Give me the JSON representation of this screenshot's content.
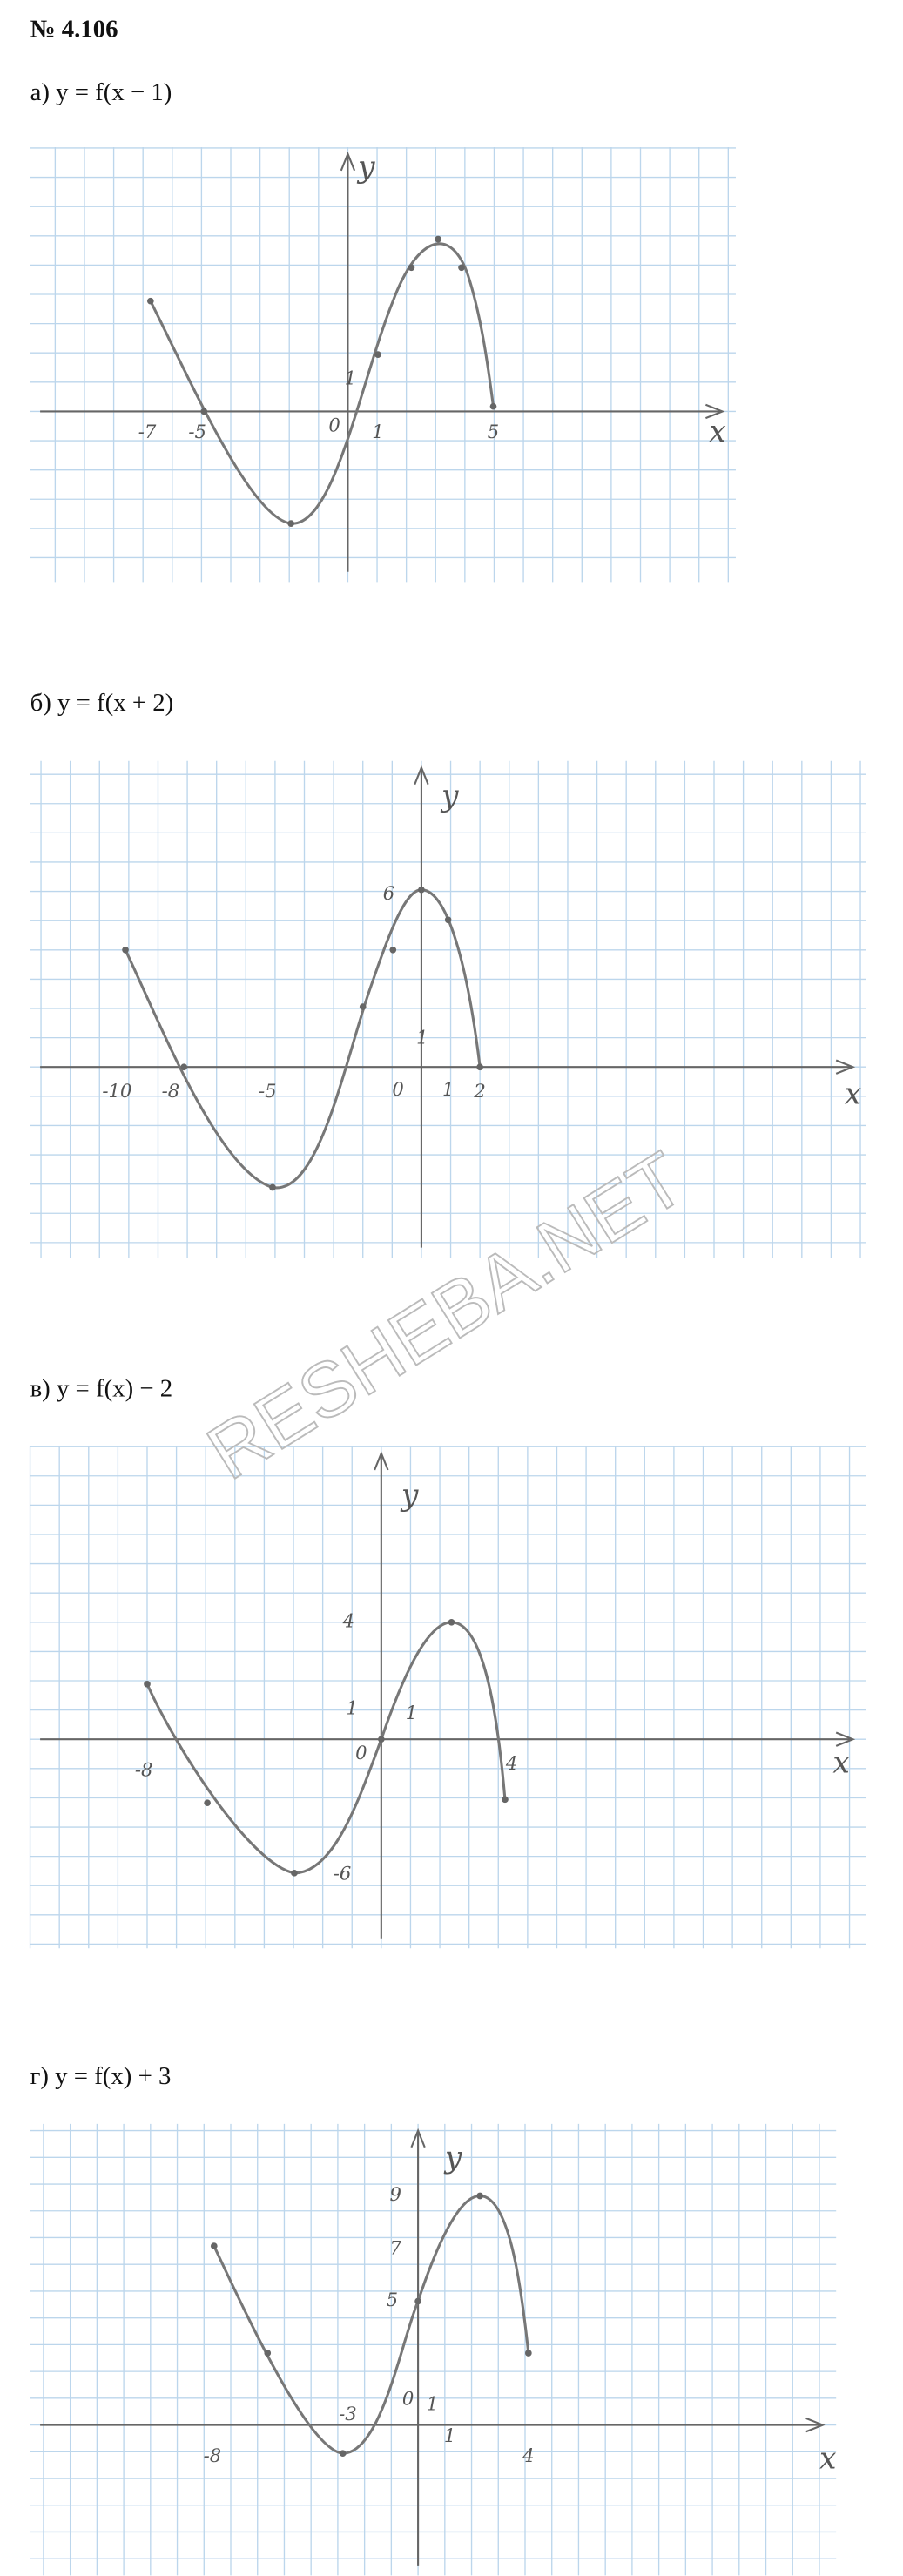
{
  "header": {
    "title": "№ 4.106"
  },
  "problems": [
    {
      "label": "а) y = f(x − 1)",
      "graph": {
        "x_axis_label": "x",
        "y_axis_label": "y",
        "x_ticks": [
          "-7",
          "-5",
          "0",
          "1",
          "5"
        ],
        "y_ticks": [
          "1"
        ]
      }
    },
    {
      "label": "б) y = f(x + 2)",
      "graph": {
        "x_axis_label": "x",
        "y_axis_label": "y",
        "x_ticks": [
          "-10",
          "-8",
          "-5",
          "0",
          "1",
          "2"
        ],
        "y_ticks": [
          "6",
          "1"
        ]
      }
    },
    {
      "label": "в) y = f(x) − 2",
      "graph": {
        "x_axis_label": "x",
        "y_axis_label": "y",
        "x_ticks": [
          "-8",
          "0",
          "1",
          "4"
        ],
        "y_ticks": [
          "4",
          "1",
          "-6"
        ]
      }
    },
    {
      "label": "г) y = f(x) + 3",
      "graph": {
        "x_axis_label": "x",
        "y_axis_label": "y",
        "x_ticks": [
          "-8",
          "-3",
          "0",
          "1",
          "4"
        ],
        "y_ticks": [
          "9",
          "7",
          "5",
          "1"
        ]
      }
    }
  ],
  "watermark": "RESHEBA.NET"
}
